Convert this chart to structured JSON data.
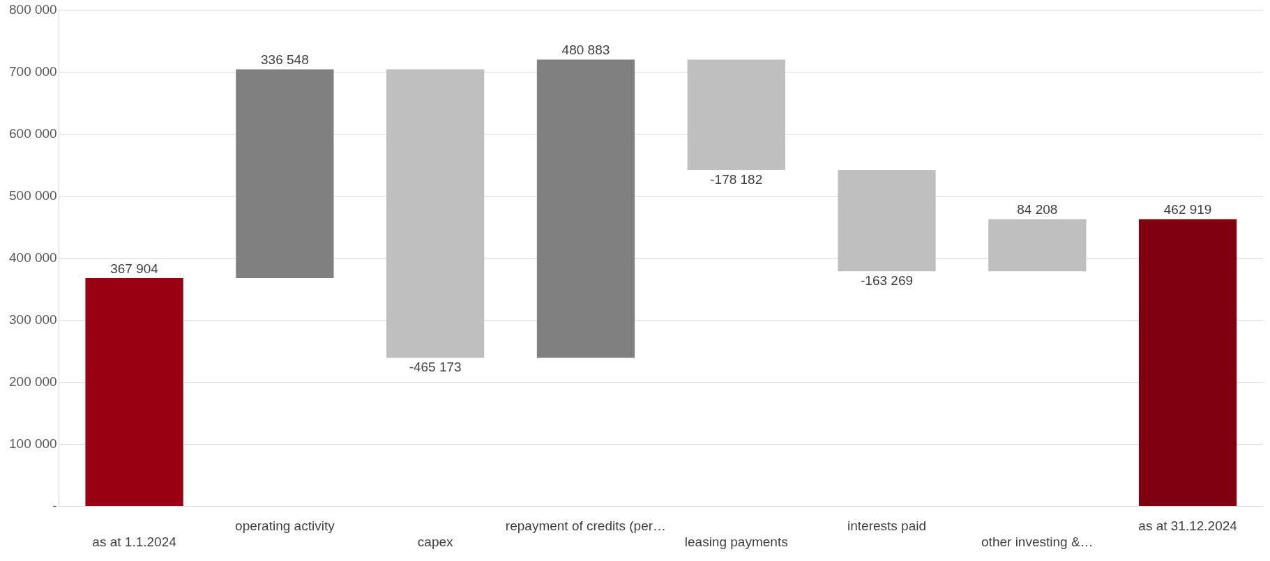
{
  "chart_data": {
    "type": "bar",
    "categories": [
      "as at 1.1.2024",
      "operating activity",
      "capex",
      "repayment of credits (per…",
      "leasing payments",
      "interests paid",
      "other investing &…",
      "as at 31.12.2024"
    ],
    "base": [
      0,
      367904,
      704452,
      239279,
      720162,
      541980,
      378711,
      0
    ],
    "values": [
      367904,
      336548,
      -465173,
      480883,
      -178182,
      -163269,
      84208,
      462919
    ],
    "colors": [
      "#990011",
      "#808080",
      "#bfbfbf",
      "#808080",
      "#bfbfbf",
      "#bfbfbf",
      "#bfbfbf",
      "#80000f"
    ],
    "value_labels": [
      "367 904",
      "336 548",
      "-465 173",
      "480 883",
      "-178 182",
      "-163 269",
      "84 208",
      "462 919"
    ],
    "ylim": [
      0,
      800000
    ],
    "yticks": [
      {
        "value": 0,
        "label": "-"
      },
      {
        "value": 100000,
        "label": "100 000"
      },
      {
        "value": 200000,
        "label": "200 000"
      },
      {
        "value": 300000,
        "label": "300 000"
      },
      {
        "value": 400000,
        "label": "400 000"
      },
      {
        "value": 500000,
        "label": "500 000"
      },
      {
        "value": 600000,
        "label": "600 000"
      },
      {
        "value": 700000,
        "label": "700 000"
      },
      {
        "value": 800000,
        "label": "800 000"
      }
    ],
    "grid": "y",
    "legend": false
  }
}
